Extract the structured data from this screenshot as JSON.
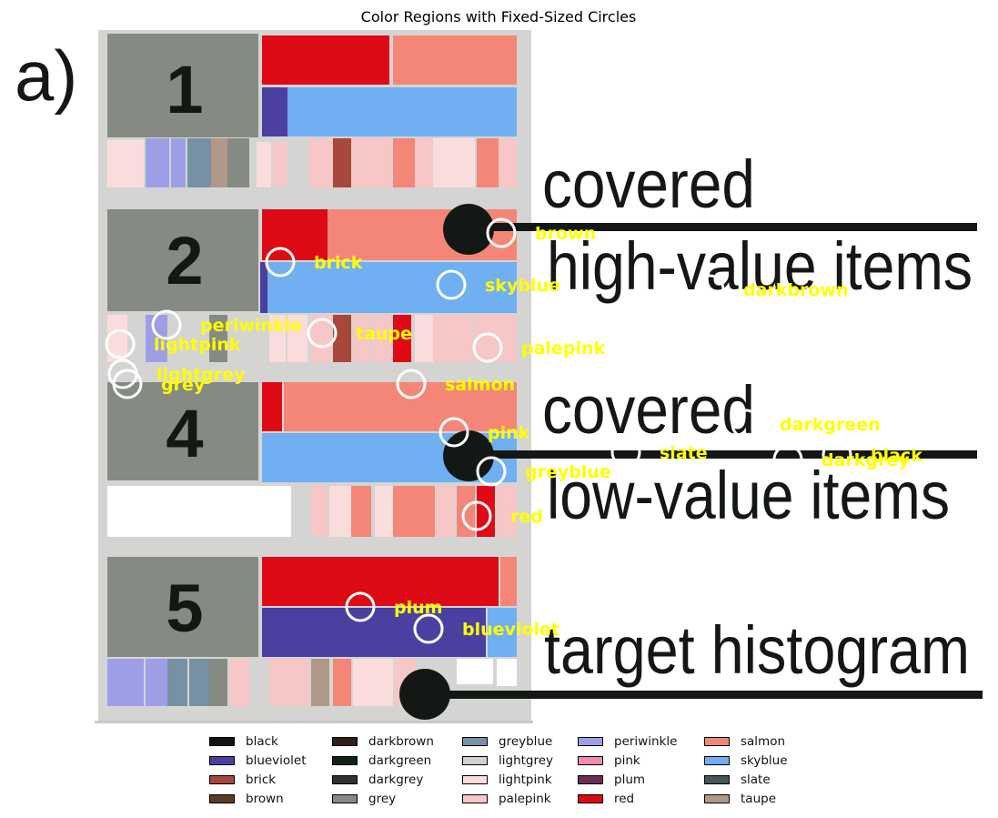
{
  "title": "Color Regions with Fixed-Sized Circles",
  "panel_label": "a)",
  "shelf_numbers": [
    "1",
    "2",
    "4",
    "5"
  ],
  "annotations": {
    "covered_1": "covered",
    "high_value": "high-value items",
    "covered_2": "covered",
    "low_value": "low-value items",
    "target": "target histogram"
  },
  "palette": {
    "black": "#111411",
    "blueviolet": "#4b40a0",
    "brick": "#a8483c",
    "brown": "#5c3c28",
    "darkbrown": "#2e1f18",
    "darkgreen": "#0e2410",
    "darkgrey": "#2e332e",
    "grey": "#858a83",
    "greyblue": "#7890a3",
    "lightgrey": "#d0d2d0",
    "lightpink": "#fbdcdc",
    "palepink": "#f7c6c6",
    "pink": "#f08cac",
    "plum": "#6a2d55",
    "red": "#de0a16",
    "salmon": "#f48678",
    "skyblue": "#6faff2",
    "slate": "#46555a",
    "taupe": "#b09888",
    "periwinkle": "#9e9ee6",
    "label_yellow": "#ffff00"
  },
  "markers": [
    {
      "label": "brown"
    },
    {
      "label": "brick"
    },
    {
      "label": "skyblue"
    },
    {
      "label": "darkbrown"
    },
    {
      "label": "periwinkle"
    },
    {
      "label": "taupe"
    },
    {
      "label": "lightpink"
    },
    {
      "label": "palepink"
    },
    {
      "label": "lightgrey"
    },
    {
      "label": "grey"
    },
    {
      "label": "salmon"
    },
    {
      "label": "darkgreen"
    },
    {
      "label": "pink"
    },
    {
      "label": "slate"
    },
    {
      "label": "black"
    },
    {
      "label": "darkgrey"
    },
    {
      "label": "greyblue"
    },
    {
      "label": "red"
    },
    {
      "label": "plum"
    },
    {
      "label": "blueviolet"
    }
  ],
  "legend": [
    {
      "label": "black",
      "color": "#111411"
    },
    {
      "label": "blueviolet",
      "color": "#4b40a0"
    },
    {
      "label": "brick",
      "color": "#a8483c"
    },
    {
      "label": "brown",
      "color": "#5c3c28"
    },
    {
      "label": "darkbrown",
      "color": "#2e1f18"
    },
    {
      "label": "darkgreen",
      "color": "#0e2410"
    },
    {
      "label": "darkgrey",
      "color": "#2e332e"
    },
    {
      "label": "grey",
      "color": "#858a83"
    },
    {
      "label": "greyblue",
      "color": "#7890a3"
    },
    {
      "label": "lightgrey",
      "color": "#d0d2d0"
    },
    {
      "label": "lightpink",
      "color": "#fbdcdc"
    },
    {
      "label": "palepink",
      "color": "#f7c6c6"
    },
    {
      "label": "periwinkle",
      "color": "#9e9ee6"
    },
    {
      "label": "pink",
      "color": "#f08cac"
    },
    {
      "label": "plum",
      "color": "#6a2d55"
    },
    {
      "label": "red",
      "color": "#de0a16"
    },
    {
      "label": "salmon",
      "color": "#f48678"
    },
    {
      "label": "skyblue",
      "color": "#6faff2"
    },
    {
      "label": "slate",
      "color": "#46555a"
    },
    {
      "label": "taupe",
      "color": "#b09888"
    }
  ]
}
